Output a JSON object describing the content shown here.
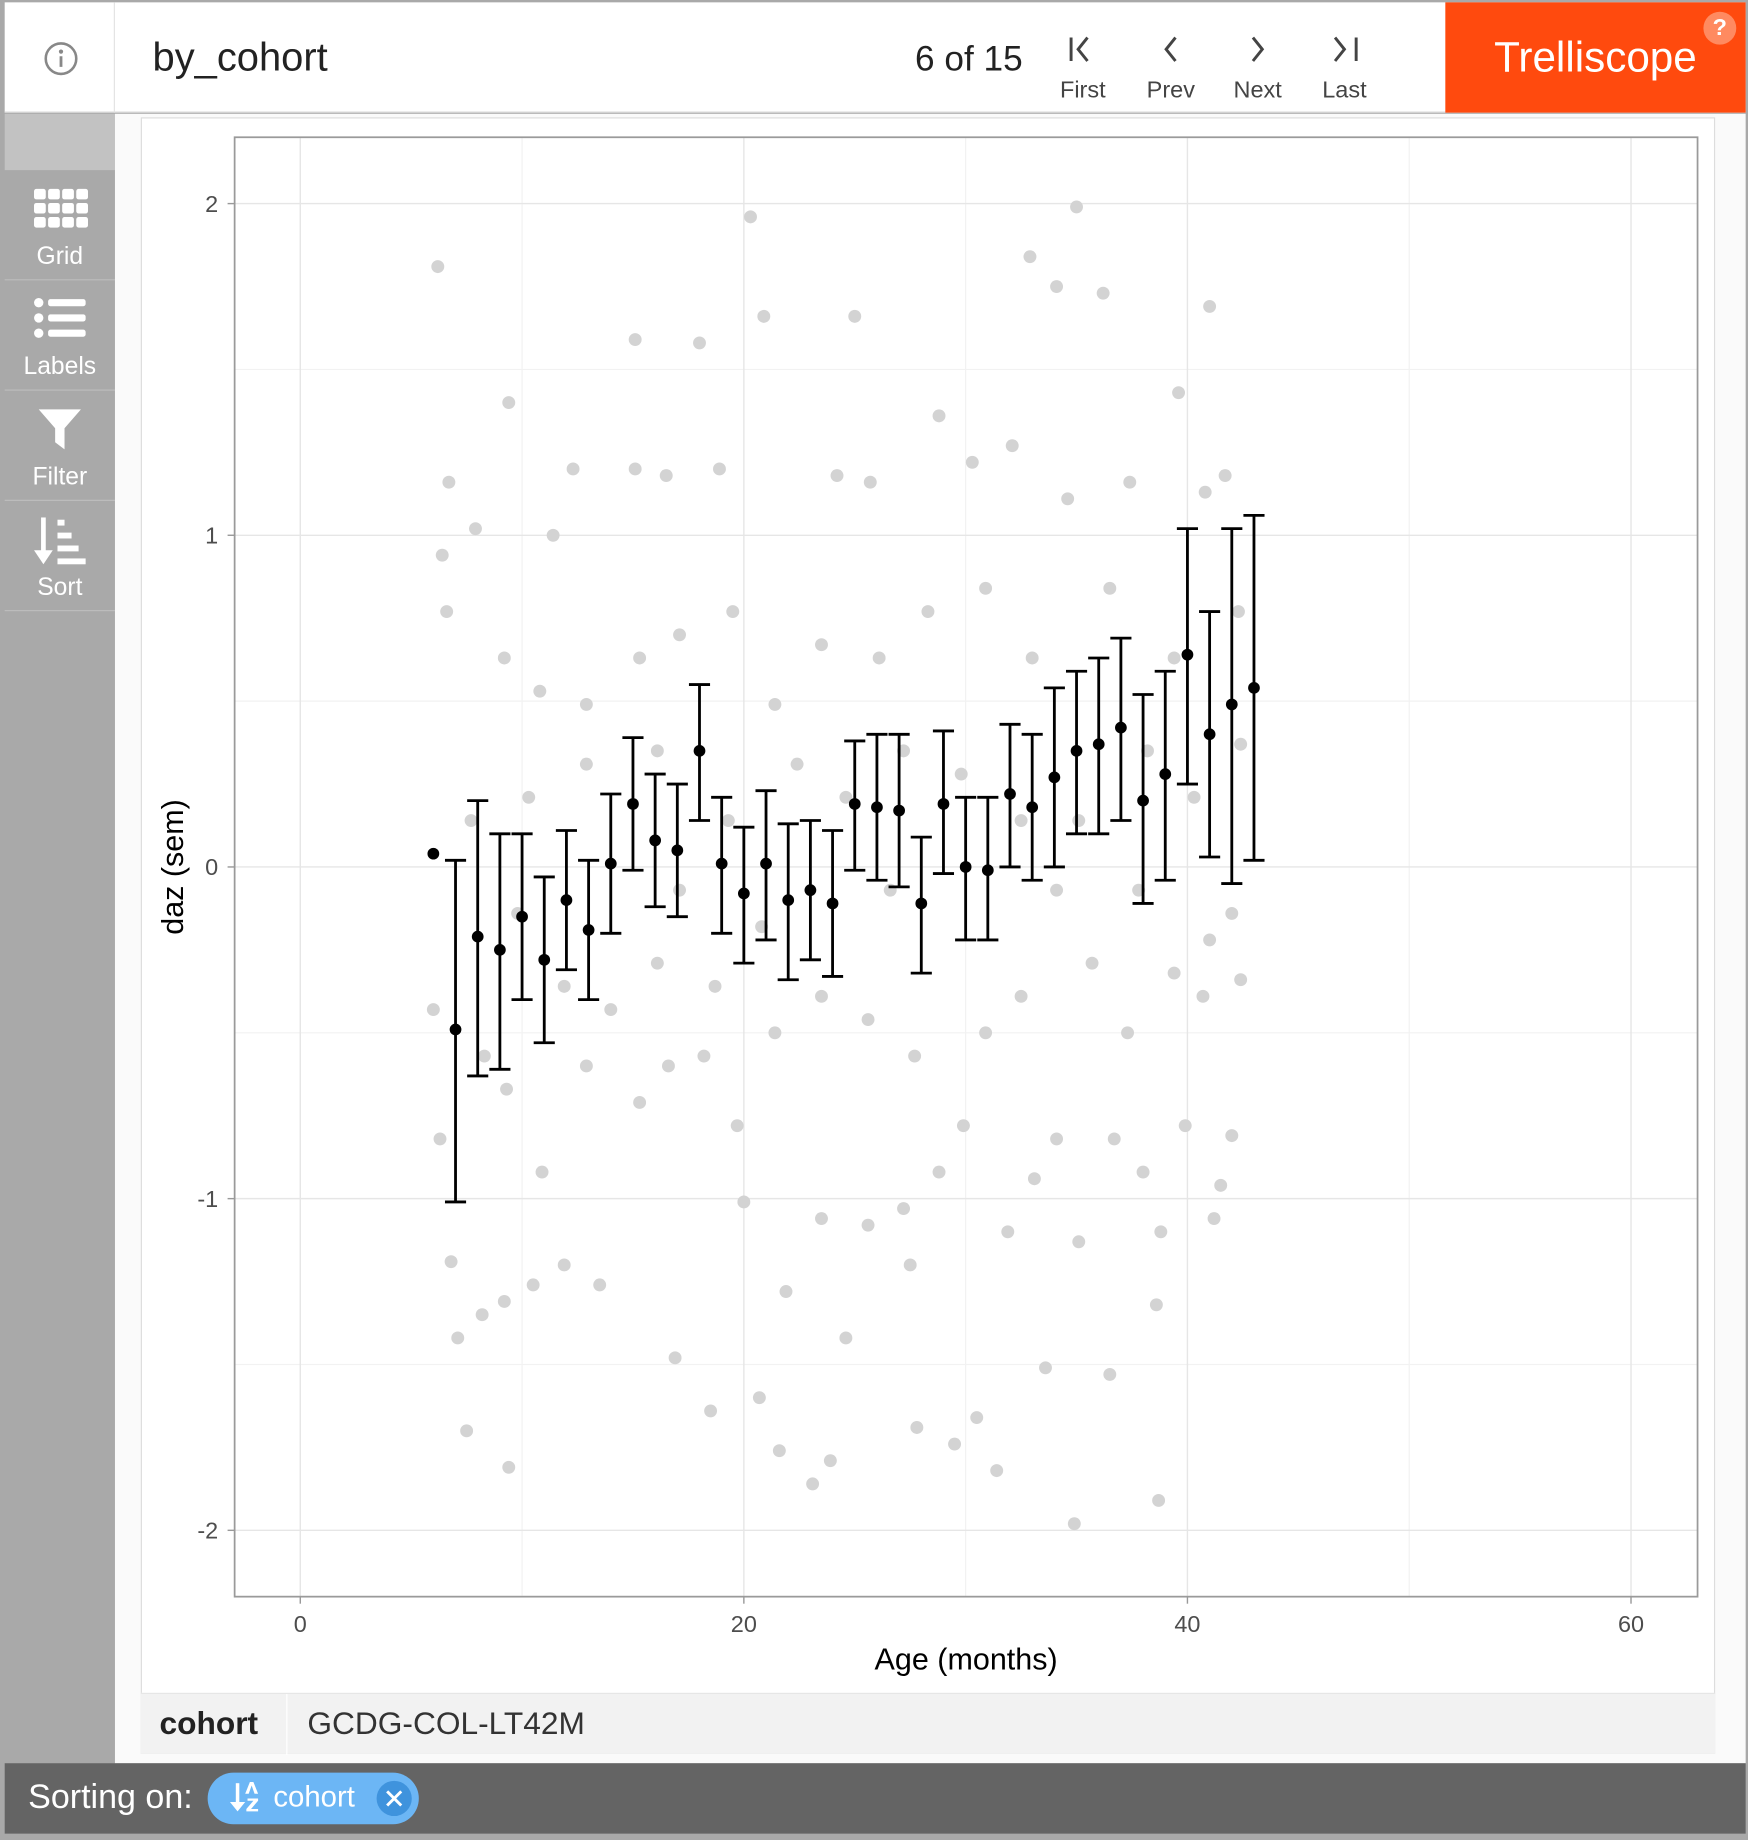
{
  "header": {
    "title": "by_cohort",
    "pager": "6 of 15",
    "nav": [
      "First",
      "Prev",
      "Next",
      "Last"
    ],
    "brand": "Trelliscope",
    "help": "?"
  },
  "sidebar": [
    "Grid",
    "Labels",
    "Filter",
    "Sort"
  ],
  "panel_label": {
    "name": "cohort",
    "value": "GCDG-COL-LT42M"
  },
  "footer": {
    "label": "Sorting on:",
    "sort_chip": "cohort"
  },
  "chart_data": {
    "type": "scatter",
    "xlabel": "Age (months)",
    "ylabel": "daz (sem)",
    "xlim": [
      -2.96,
      63.0
    ],
    "ylim": [
      -2.2,
      2.2
    ],
    "xticks": [
      0,
      20,
      40,
      60
    ],
    "yticks": [
      -2,
      -1,
      0,
      1,
      2
    ],
    "grid": true,
    "points": {
      "color": "#d3d3d3",
      "x": [
        6.2,
        9.4,
        20.3,
        35.0,
        34.9,
        38.7,
        7.5,
        23.1,
        21.6,
        31.4,
        9.4,
        15.1,
        18.0,
        20.9,
        25.0,
        32.9,
        34.1,
        36.2,
        41.0,
        39.6,
        18.5,
        16.9,
        20.7,
        23.9,
        27.8,
        29.5,
        30.5,
        36.5,
        33.6,
        6.7,
        6.4,
        7.9,
        12.3,
        11.4,
        15.1,
        16.5,
        18.9,
        24.2,
        25.7,
        28.8,
        30.3,
        32.1,
        34.6,
        37.4,
        40.8,
        41.7,
        6.6,
        9.2,
        10.8,
        12.9,
        15.3,
        17.1,
        19.5,
        21.4,
        23.5,
        26.1,
        28.3,
        30.9,
        33.0,
        36.5,
        39.4,
        42.3,
        42.4,
        6.0,
        6.3,
        6.8,
        7.1,
        8.2,
        9.2,
        10.5,
        11.9,
        13.5,
        10.9,
        9.3,
        8.3,
        12.9,
        15.3,
        16.6,
        18.2,
        19.7,
        20.0,
        21.9,
        23.5,
        24.6,
        25.6,
        27.2,
        27.5,
        28.8,
        29.9,
        31.9,
        33.1,
        34.1,
        35.1,
        36.7,
        38.0,
        38.8,
        38.6,
        39.9,
        41.5,
        42.0,
        41.2,
        42.0,
        42.4,
        40.7,
        41.0,
        39.4,
        37.3,
        35.7,
        32.5,
        30.9,
        27.7,
        25.6,
        23.5,
        21.4,
        18.7,
        16.1,
        14.0,
        11.9,
        9.8,
        7.7,
        10.3,
        12.9,
        16.1,
        19.3,
        22.4,
        24.6,
        27.2,
        29.8,
        32.5,
        35.1,
        38.2,
        40.3,
        17.1,
        20.8,
        26.6,
        34.1,
        37.8
      ],
      "y": [
        1.81,
        -1.81,
        1.96,
        1.99,
        -1.98,
        -1.91,
        -1.7,
        -1.86,
        -1.76,
        -1.82,
        1.4,
        1.59,
        1.58,
        1.66,
        1.66,
        1.84,
        1.75,
        1.73,
        1.69,
        1.43,
        -1.64,
        -1.48,
        -1.6,
        -1.79,
        -1.69,
        -1.74,
        -1.66,
        -1.53,
        -1.51,
        1.16,
        0.94,
        1.02,
        1.2,
        1.0,
        1.2,
        1.18,
        1.2,
        1.18,
        1.16,
        1.36,
        1.22,
        1.27,
        1.11,
        1.16,
        1.13,
        1.18,
        0.77,
        0.63,
        0.53,
        0.49,
        0.63,
        0.7,
        0.77,
        0.49,
        0.67,
        0.63,
        0.77,
        0.84,
        0.63,
        0.84,
        0.63,
        0.77,
        0.37,
        -0.43,
        -0.82,
        -1.19,
        -1.42,
        -1.35,
        -1.31,
        -1.26,
        -1.2,
        -1.26,
        -0.92,
        -0.67,
        -0.57,
        -0.6,
        -0.71,
        -0.6,
        -0.57,
        -0.78,
        -1.01,
        -1.28,
        -1.06,
        -1.42,
        -1.08,
        -1.03,
        -1.2,
        -0.92,
        -0.78,
        -1.1,
        -0.94,
        -0.82,
        -1.13,
        -0.82,
        -0.92,
        -1.1,
        -1.32,
        -0.78,
        -0.96,
        -0.81,
        -1.06,
        -0.14,
        -0.34,
        -0.39,
        -0.22,
        -0.32,
        -0.5,
        -0.29,
        -0.39,
        -0.5,
        -0.57,
        -0.46,
        -0.39,
        -0.5,
        -0.36,
        -0.29,
        -0.43,
        -0.36,
        -0.14,
        0.14,
        0.21,
        0.31,
        0.35,
        0.14,
        0.31,
        0.21,
        0.35,
        0.28,
        0.14,
        0.14,
        0.35,
        0.21,
        -0.07,
        -0.18,
        -0.07,
        -0.07,
        -0.07
      ]
    },
    "means": {
      "color": "#000000",
      "x": [
        6,
        7,
        8,
        9,
        10,
        11,
        12,
        13,
        14,
        15,
        16,
        17,
        18,
        19,
        20,
        21,
        22,
        23,
        24,
        25,
        26,
        27,
        28,
        29,
        30,
        31,
        32,
        33,
        34,
        35,
        36,
        37,
        38,
        39,
        40,
        41,
        42,
        43
      ],
      "y": [
        0.04,
        -0.49,
        -0.21,
        -0.25,
        -0.15,
        -0.28,
        -0.1,
        -0.19,
        0.01,
        0.19,
        0.08,
        0.05,
        0.35,
        0.01,
        -0.08,
        0.01,
        -0.1,
        -0.07,
        -0.11,
        0.19,
        0.18,
        0.17,
        -0.11,
        0.19,
        0.0,
        -0.01,
        0.22,
        0.18,
        0.27,
        0.35,
        0.37,
        0.42,
        0.2,
        0.28,
        0.64,
        0.4,
        0.49,
        0.54
      ],
      "lower": [
        null,
        -1.01,
        -0.63,
        -0.61,
        -0.4,
        -0.53,
        -0.31,
        -0.4,
        -0.2,
        -0.01,
        -0.12,
        -0.15,
        0.14,
        -0.2,
        -0.29,
        -0.22,
        -0.34,
        -0.28,
        -0.33,
        -0.01,
        -0.04,
        -0.06,
        -0.32,
        -0.02,
        -0.22,
        -0.22,
        0.0,
        -0.04,
        0.0,
        0.1,
        0.1,
        0.14,
        -0.11,
        -0.04,
        0.25,
        0.03,
        -0.05,
        0.02
      ],
      "upper": [
        null,
        0.02,
        0.2,
        0.1,
        0.1,
        -0.03,
        0.11,
        0.02,
        0.22,
        0.39,
        0.28,
        0.25,
        0.55,
        0.21,
        0.12,
        0.23,
        0.13,
        0.14,
        0.11,
        0.38,
        0.4,
        0.4,
        0.09,
        0.41,
        0.21,
        0.21,
        0.43,
        0.4,
        0.54,
        0.59,
        0.63,
        0.69,
        0.52,
        0.59,
        1.02,
        0.77,
        1.02,
        1.06
      ]
    }
  }
}
